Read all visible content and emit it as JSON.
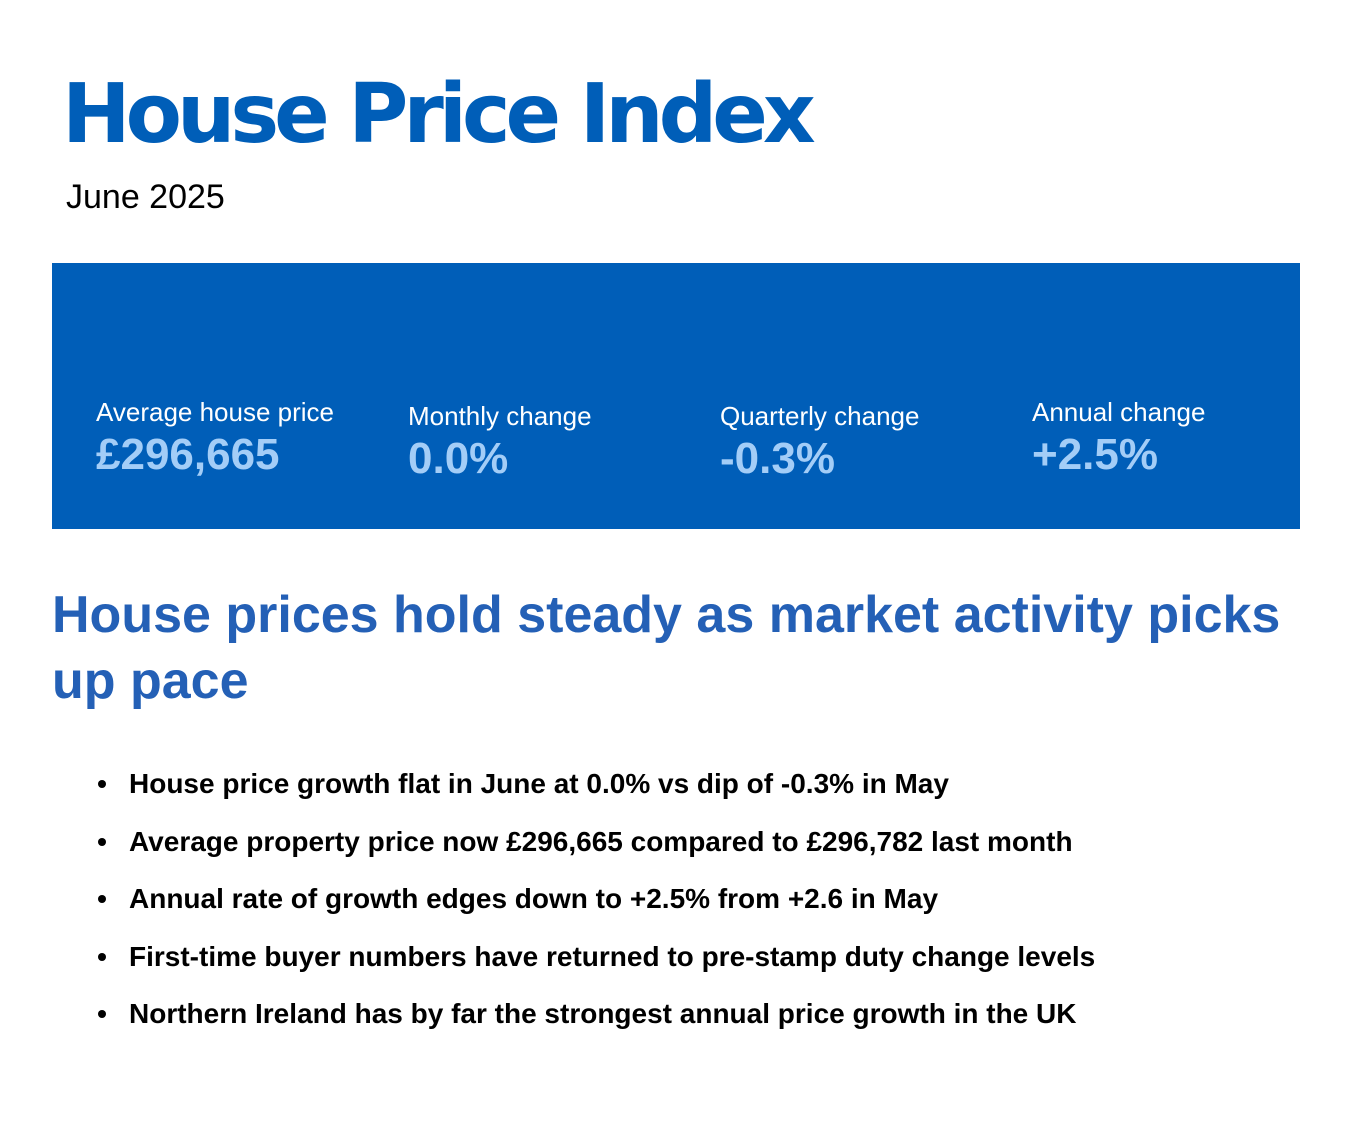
{
  "header": {
    "title": "House Price Index",
    "date": "June 2025"
  },
  "stats": [
    {
      "label": "Average house price",
      "value": "£296,665"
    },
    {
      "label": "Monthly change",
      "value": "0.0%"
    },
    {
      "label": "Quarterly change",
      "value": "-0.3%"
    },
    {
      "label": "Annual change",
      "value": "+2.5%"
    }
  ],
  "headline": "House prices hold steady as market activity picks up pace",
  "bullets": [
    "House price growth flat in June at 0.0% vs dip of -0.3% in May",
    "Average property price now £296,665 compared to £296,782 last month",
    "Annual rate of growth edges down to +2.5% from +2.6 in May",
    "First-time buyer numbers have returned to pre-stamp duty change levels",
    "Northern Ireland has by far the strongest annual price growth in the UK"
  ],
  "colors": {
    "brand_blue": "#005eb8",
    "headline_blue": "#2460b6",
    "value_light_blue": "#a3cdf7"
  }
}
